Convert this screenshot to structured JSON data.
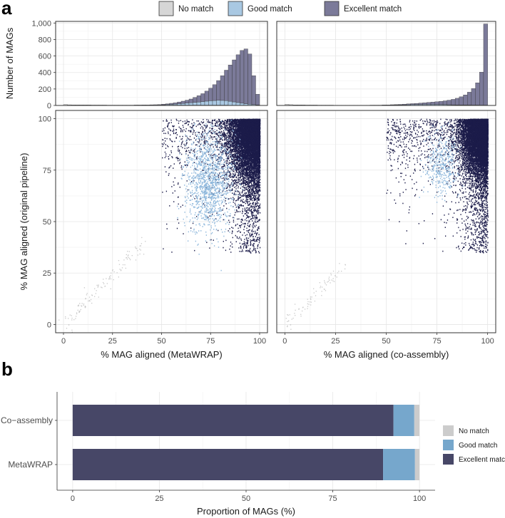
{
  "figure": {
    "panel_a": "a",
    "panel_b": "b"
  },
  "legend_a": [
    {
      "label": "No match",
      "color": "#d6d6d6"
    },
    {
      "label": "Good match",
      "color": "#a9c8e2"
    },
    {
      "label": "Excellent match",
      "color": "#7b7a99"
    }
  ],
  "chart_data": [
    {
      "id": "hist_metawrap",
      "type": "bar",
      "title": "",
      "xlabel": "",
      "ylabel": "Number of MAGs",
      "xlim": [
        -4,
        104
      ],
      "ylim": [
        0,
        1020
      ],
      "ytick_values": [
        0,
        200,
        400,
        600,
        800,
        1000
      ],
      "ytick_labels": [
        "0",
        "200",
        "400",
        "600",
        "800",
        "1,000"
      ],
      "bin_width": 2,
      "bin_starts": [
        0,
        2,
        4,
        6,
        8,
        10,
        12,
        14,
        16,
        18,
        20,
        22,
        24,
        26,
        28,
        30,
        32,
        34,
        36,
        38,
        40,
        42,
        44,
        46,
        48,
        50,
        52,
        54,
        56,
        58,
        60,
        62,
        64,
        66,
        68,
        70,
        72,
        74,
        76,
        78,
        80,
        82,
        84,
        86,
        88,
        90,
        92,
        94,
        96,
        98
      ],
      "series": [
        {
          "name": "No match",
          "values": [
            10,
            8,
            7,
            7,
            6,
            6,
            6,
            5,
            5,
            5,
            5,
            4,
            4,
            4,
            4,
            4,
            4,
            4,
            4,
            4,
            4,
            3,
            3,
            3,
            3,
            4,
            4,
            4,
            4,
            4,
            4,
            4,
            4,
            4,
            4,
            4,
            4,
            4,
            4,
            4,
            4,
            4,
            3,
            3,
            3,
            3,
            3,
            3,
            3,
            2
          ]
        },
        {
          "name": "Good match",
          "values": [
            0,
            0,
            0,
            0,
            0,
            0,
            0,
            0,
            0,
            0,
            0,
            0,
            0,
            0,
            0,
            0,
            0,
            0,
            0,
            0,
            0,
            0,
            1,
            1,
            2,
            4,
            6,
            9,
            12,
            16,
            20,
            24,
            28,
            33,
            38,
            43,
            48,
            53,
            56,
            58,
            57,
            54,
            48,
            40,
            32,
            24,
            18,
            12,
            8,
            4
          ]
        },
        {
          "name": "Excellent match",
          "values": [
            0,
            0,
            0,
            0,
            0,
            0,
            0,
            0,
            0,
            0,
            0,
            0,
            0,
            0,
            0,
            0,
            0,
            0,
            1,
            1,
            2,
            3,
            4,
            5,
            6,
            8,
            10,
            13,
            16,
            22,
            28,
            36,
            46,
            60,
            76,
            96,
            122,
            152,
            192,
            240,
            300,
            370,
            440,
            510,
            580,
            640,
            665,
            610,
            350,
            130
          ]
        }
      ]
    },
    {
      "id": "hist_coassembly",
      "type": "bar",
      "title": "",
      "xlabel": "",
      "ylabel": "",
      "xlim": [
        -4,
        104
      ],
      "ylim": [
        0,
        1020
      ],
      "bin_width": 2,
      "bin_starts": [
        0,
        2,
        4,
        6,
        8,
        10,
        12,
        14,
        16,
        18,
        20,
        22,
        24,
        26,
        28,
        30,
        32,
        34,
        36,
        38,
        40,
        42,
        44,
        46,
        48,
        50,
        52,
        54,
        56,
        58,
        60,
        62,
        64,
        66,
        68,
        70,
        72,
        74,
        76,
        78,
        80,
        82,
        84,
        86,
        88,
        90,
        92,
        94,
        96,
        98
      ],
      "series": [
        {
          "name": "No match",
          "values": [
            12,
            9,
            7,
            6,
            6,
            5,
            5,
            5,
            4,
            4,
            4,
            4,
            3,
            3,
            3,
            3,
            3,
            3,
            3,
            3,
            3,
            3,
            3,
            3,
            3,
            3,
            3,
            3,
            3,
            3,
            3,
            3,
            3,
            3,
            3,
            3,
            3,
            3,
            3,
            3,
            3,
            3,
            3,
            3,
            3,
            3,
            3,
            3,
            3,
            3
          ]
        },
        {
          "name": "Good match",
          "values": [
            0,
            0,
            0,
            0,
            0,
            0,
            0,
            0,
            0,
            0,
            0,
            0,
            0,
            0,
            0,
            0,
            0,
            0,
            0,
            0,
            0,
            0,
            0,
            0,
            1,
            1,
            2,
            3,
            4,
            5,
            6,
            7,
            8,
            9,
            10,
            10,
            10,
            9,
            8,
            7,
            6,
            5,
            4,
            4,
            3,
            3,
            2,
            2,
            1,
            1
          ]
        },
        {
          "name": "Excellent match",
          "values": [
            0,
            0,
            0,
            0,
            0,
            0,
            0,
            0,
            0,
            0,
            0,
            0,
            0,
            0,
            0,
            0,
            0,
            0,
            0,
            0,
            0,
            1,
            1,
            1,
            2,
            3,
            4,
            5,
            6,
            8,
            10,
            12,
            14,
            17,
            20,
            24,
            28,
            33,
            39,
            46,
            55,
            66,
            80,
            98,
            122,
            155,
            200,
            270,
            400,
            985
          ]
        }
      ]
    },
    {
      "id": "scatter_metawrap",
      "type": "scatter",
      "xlabel": "% MAG aligned (MetaWRAP)",
      "ylabel": "% MAG aligned (original pipeline)",
      "xlim": [
        -4,
        104
      ],
      "ylim": [
        -4,
        104
      ],
      "xtick_values": [
        0,
        25,
        50,
        75,
        100
      ],
      "xtick_labels": [
        "0",
        "25",
        "50",
        "75",
        "100"
      ],
      "ytick_values": [
        0,
        25,
        50,
        75,
        100
      ],
      "ytick_labels": [
        "0",
        "25",
        "50",
        "75",
        "100"
      ],
      "series": [
        {
          "name": "No match",
          "description": "sparse diagonal band",
          "x_range": [
            0,
            40
          ],
          "y_range": [
            0,
            40
          ],
          "n_points": 120
        },
        {
          "name": "Good match",
          "description": "cluster",
          "center": [
            74,
            70
          ],
          "spread": [
            6,
            12
          ],
          "n_points": 1300
        },
        {
          "name": "Excellent match",
          "description": "dense top-right",
          "center": [
            95,
            92
          ],
          "spread": [
            6,
            10
          ],
          "n_points": 9000
        }
      ]
    },
    {
      "id": "scatter_coassembly",
      "type": "scatter",
      "xlabel": "% MAG aligned (co-assembly)",
      "ylabel": "",
      "xlim": [
        -4,
        104
      ],
      "ylim": [
        -4,
        104
      ],
      "xtick_values": [
        0,
        25,
        50,
        75,
        100
      ],
      "xtick_labels": [
        "0",
        "25",
        "50",
        "75",
        "100"
      ],
      "series": [
        {
          "name": "No match",
          "description": "sparse diagonal band",
          "x_range": [
            0,
            30
          ],
          "y_range": [
            0,
            30
          ],
          "n_points": 80
        },
        {
          "name": "Good match",
          "description": "cluster",
          "center": [
            77,
            78
          ],
          "spread": [
            4,
            8
          ],
          "n_points": 400
        },
        {
          "name": "Excellent match",
          "description": "dense top-right",
          "center": [
            97,
            94
          ],
          "spread": [
            5,
            9
          ],
          "n_points": 9500
        }
      ]
    },
    {
      "id": "stacked_proportion",
      "type": "bar",
      "orientation": "horizontal",
      "stacked": true,
      "xlabel": "Proportion of MAGs (%)",
      "ylabel": "",
      "xlim": [
        -4.5,
        104.5
      ],
      "xtick_values": [
        0,
        25,
        50,
        75,
        100
      ],
      "xtick_labels": [
        "0",
        "25",
        "50",
        "75",
        "100"
      ],
      "categories": [
        "Co−assembly",
        "MetaWRAP"
      ],
      "series": [
        {
          "name": "Excellent match",
          "color": "#474767",
          "values": [
            92.5,
            89.5
          ]
        },
        {
          "name": "Good match",
          "color": "#76a7cc",
          "values": [
            6.0,
            9.2
          ]
        },
        {
          "name": "No match",
          "color": "#cccccc",
          "values": [
            1.5,
            1.3
          ]
        }
      ],
      "legend": [
        {
          "label": "No match",
          "color": "#cccccc"
        },
        {
          "label": "Good match",
          "color": "#76a7cc"
        },
        {
          "label": "Excellent match",
          "color": "#474767"
        }
      ],
      "legend_position": "right"
    }
  ]
}
